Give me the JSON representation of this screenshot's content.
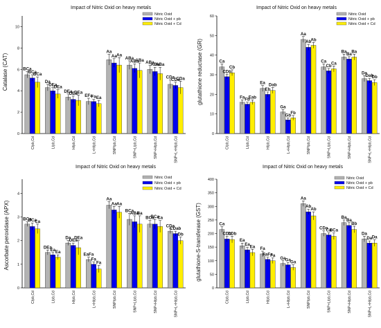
{
  "chart_data": [
    {
      "type": "bar",
      "title": "Impact of Nitric Oxid on heavy metals",
      "ylabel": "Catalase (CAT)",
      "xlabel": "",
      "ylim": [
        0,
        11
      ],
      "yticks": [
        0,
        2,
        4,
        6,
        8,
        10
      ],
      "grid": false,
      "legend_position": "top-right",
      "categories": [
        "C/pb,Cd",
        "L/pb,Cd",
        "H/pb,Cd",
        "L+H/pb,Cd",
        "SNP/pb,Cd",
        "SNP+L/pb,Cd",
        "SNP+H/pb,Cd",
        "SNP+L+H/pb,Cd"
      ],
      "series": [
        {
          "name": "Nitric Oxid",
          "color": "#b3b3b3",
          "values": [
            5.5,
            4.3,
            3.4,
            3.0,
            6.9,
            6.4,
            6.0,
            4.6
          ],
          "errors": [
            0.3,
            0.3,
            0.3,
            0.3,
            0.5,
            0.4,
            0.4,
            0.4
          ],
          "labels": [
            "BCa",
            "Da",
            "DEa",
            "EFa",
            "Aa",
            "ABa",
            "ABa",
            "CDa"
          ]
        },
        {
          "name": "Nitric Oxid + pb",
          "color": "#0000ee",
          "values": [
            5.2,
            4.0,
            3.2,
            3.0,
            6.6,
            6.1,
            5.8,
            4.5
          ],
          "errors": [
            0.3,
            0.3,
            0.3,
            0.2,
            0.4,
            0.4,
            0.4,
            0.3
          ],
          "labels": [
            "BCa",
            "DEa",
            "DEa",
            "Fa",
            "Aa",
            "ABa",
            "ABa",
            "CDa"
          ]
        },
        {
          "name": "Nitric Oxid + Cd",
          "color": "#ffee00",
          "values": [
            4.8,
            3.7,
            3.1,
            2.8,
            6.4,
            5.9,
            5.6,
            4.3
          ],
          "errors": [
            0.5,
            0.4,
            0.5,
            0.3,
            0.7,
            0.7,
            0.6,
            0.6
          ],
          "labels": [
            "BCa",
            "DEa",
            "DEa",
            "Ea",
            "Aa",
            "ABa",
            "ABa",
            "CDa"
          ]
        }
      ]
    },
    {
      "type": "bar",
      "title": "Impact of Nitric Oxid on heavy metals",
      "ylabel": "glutathione reductase (GR)",
      "xlabel": "",
      "ylim": [
        0,
        60
      ],
      "yticks": [
        0,
        10,
        20,
        30,
        40,
        50,
        60
      ],
      "grid": false,
      "legend_position": "top-right",
      "categories": [
        "C/pb,Cd",
        "L/pb,Cd",
        "H/pb,Cd",
        "L+H/pb,Cd",
        "SNP/pb,Cd",
        "SNP+L/pb,Cd",
        "SNP+H/pb,Cd",
        "SNP+L+H/pb,Cd"
      ],
      "series": [
        {
          "name": "Nitric Oxid",
          "color": "#b3b3b3",
          "values": [
            34,
            16,
            23,
            11,
            48,
            34,
            39,
            28
          ],
          "errors": [
            1.5,
            1.2,
            1.5,
            1.2,
            1.5,
            1.5,
            1.5,
            1.5
          ],
          "labels": [
            "Ca",
            "Fa",
            "Ea",
            "Ga",
            "Aa",
            "Ca",
            "Ba",
            "Da"
          ]
        },
        {
          "name": "Nitric Oxid + pb",
          "color": "#0000ee",
          "values": [
            29,
            15,
            20,
            7,
            44,
            32,
            38,
            27
          ],
          "errors": [
            1.2,
            1.0,
            1.2,
            1.0,
            1.5,
            1.2,
            1.2,
            1.2
          ],
          "labels": [
            "CDb",
            "Fb",
            "Eb",
            "Gb",
            "Ab",
            "Cb",
            "Ba",
            "Dab"
          ]
        },
        {
          "name": "Nitric Oxid + Cd",
          "color": "#ffee00",
          "values": [
            31,
            16,
            22,
            8,
            45,
            33,
            39,
            26
          ],
          "errors": [
            1.5,
            1.2,
            1.5,
            1.2,
            1.5,
            1.5,
            1.5,
            1.5
          ],
          "labels": [
            "Cb",
            "Eab",
            "Dab",
            "Fb",
            "Ab",
            "Ca",
            "Ba",
            "Db"
          ]
        }
      ]
    },
    {
      "type": "bar",
      "title": "Impact of Nitric Oxid on heavy metals",
      "ylabel": "Ascorbate peroxidase (APX)",
      "xlabel": "",
      "ylim": [
        0,
        4.6
      ],
      "yticks": [
        0,
        1,
        2,
        3,
        4
      ],
      "grid": false,
      "legend_position": "top-right",
      "categories": [
        "C/pb,Cd",
        "L/pb,Cd",
        "H/pb,Cd",
        "L+H/pb,Cd",
        "SNP/pb,Cd",
        "SNP+L/pb,Cd",
        "SNP+H/pb,Cd",
        "SNP+L+H/pb,Cd"
      ],
      "series": [
        {
          "name": "Nitric Oxid",
          "color": "#b3b3b3",
          "values": [
            2.7,
            1.5,
            1.9,
            1.2,
            3.5,
            2.9,
            2.7,
            2.4
          ],
          "errors": [
            0.1,
            0.1,
            0.1,
            0.1,
            0.15,
            0.25,
            0.15,
            0.1
          ],
          "labels": [
            "BCa",
            "DEa",
            "Da",
            "EaFa",
            "Aa",
            "BCa",
            "BCa",
            "CDa"
          ]
        },
        {
          "name": "Nitric Oxid + pb",
          "color": "#0000ee",
          "values": [
            2.6,
            1.4,
            1.8,
            1.0,
            3.3,
            2.8,
            2.7,
            2.3
          ],
          "errors": [
            0.15,
            0.1,
            0.1,
            0.1,
            0.15,
            0.25,
            0.2,
            0.1
          ],
          "labels": [
            "BCa",
            "Ea",
            "DEa",
            "Fa",
            "Aa",
            "ABa",
            "BCa",
            "CDab"
          ]
        },
        {
          "name": "Nitric Oxid + Cd",
          "color": "#ffee00",
          "values": [
            2.5,
            1.3,
            1.7,
            0.8,
            3.2,
            2.7,
            2.6,
            2.0
          ],
          "errors": [
            0.2,
            0.1,
            0.3,
            0.15,
            0.25,
            0.35,
            0.25,
            0.15
          ],
          "labels": [
            "Ca",
            "Ea",
            "DEa",
            "Fa",
            "Aa",
            "Ba",
            "Ca",
            "Db"
          ]
        }
      ]
    },
    {
      "type": "bar",
      "title": "Impact of Nitric Oxid on heavy metals",
      "ylabel": "glutathione-S-transferase (GST)",
      "xlabel": "",
      "ylim": [
        0,
        400
      ],
      "yticks": [
        0,
        50,
        100,
        150,
        200,
        250,
        300,
        350,
        400
      ],
      "grid": false,
      "legend_position": "top-right",
      "categories": [
        "C/pb,Cd",
        "L/pb,Cd",
        "H/pb,Cd",
        "L+H/pb,Cd",
        "SNP/pb,Cd",
        "SNP+L/pb,Cd",
        "SNP+H/pb,Cd",
        "SNP+L+H/pb,Cd"
      ],
      "series": [
        {
          "name": "Nitric Oxid",
          "color": "#b3b3b3",
          "values": [
            215,
            155,
            125,
            90,
            310,
            200,
            240,
            180
          ],
          "errors": [
            10,
            10,
            10,
            10,
            10,
            10,
            10,
            10
          ],
          "labels": [
            "Ca",
            "Ea",
            "Fa",
            "Ga",
            "Aa",
            "CDa",
            "Ba",
            "Da"
          ]
        },
        {
          "name": "Nitric Oxid + pb",
          "color": "#0000ee",
          "values": [
            180,
            140,
            105,
            85,
            280,
            195,
            230,
            165
          ],
          "errors": [
            10,
            10,
            8,
            8,
            10,
            8,
            10,
            8
          ],
          "labels": [
            "CDb",
            "Ea",
            "FaFa",
            "Ga",
            "Ab",
            "Ca",
            "Ba",
            "Da"
          ]
        },
        {
          "name": "Nitric Oxid + Cd",
          "color": "#ffee00",
          "values": [
            178,
            130,
            100,
            75,
            265,
            190,
            215,
            165
          ],
          "errors": [
            12,
            12,
            10,
            10,
            15,
            12,
            12,
            12
          ],
          "labels": [
            "CDb",
            "Ea",
            "Fa",
            "Ga",
            "Ab",
            "BCa",
            "Bb",
            "Da"
          ]
        }
      ]
    }
  ]
}
